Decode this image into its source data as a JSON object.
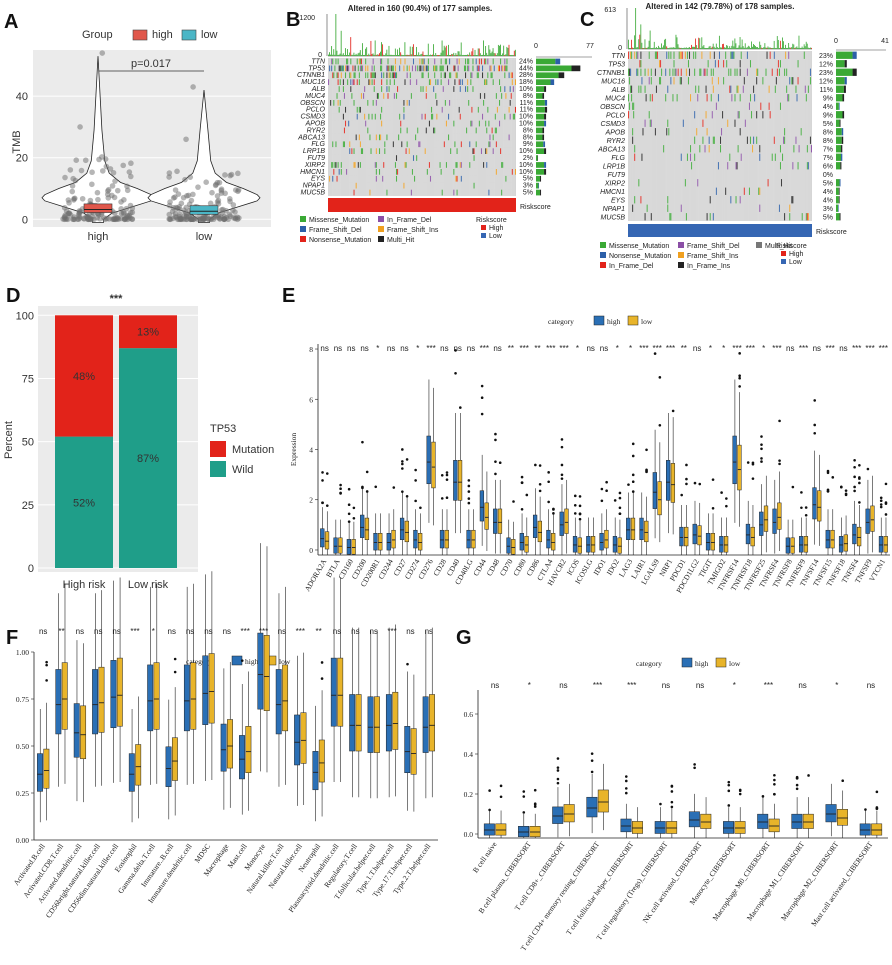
{
  "colors": {
    "high": "#e0574b",
    "low": "#4bb6c6",
    "box_high": "#2a6fb5",
    "box_low": "#e8b42a",
    "mut": "#e2231a",
    "wild": "#1f9e89",
    "green": "#3aa935"
  },
  "panels": {
    "A": "A",
    "B": "B",
    "C": "C",
    "D": "D",
    "E": "E",
    "F": "F",
    "G": "G"
  },
  "chart_data": [
    {
      "id": "A",
      "type": "violin",
      "legend_title": "Group",
      "legend": [
        "high",
        "low"
      ],
      "categories": [
        "high",
        "low"
      ],
      "ylabel": "TMB",
      "yticks": [
        0,
        20,
        40
      ],
      "ylim": [
        0,
        55
      ],
      "annotation": "p=0.017",
      "median": [
        3.2,
        2.6
      ]
    },
    {
      "id": "B",
      "type": "heatmap",
      "title": "Altered in 160 (90.4%) of 177 samples.",
      "top_max": "1200",
      "top_zero": "0",
      "right_range": [
        "0",
        "77"
      ],
      "genes": [
        "TTN",
        "TP53",
        "CTNNB1",
        "MUC16",
        "ALB",
        "MUC4",
        "OBSCN",
        "PCLO",
        "CSMD3",
        "APOB",
        "RYR2",
        "ABCA13",
        "FLG",
        "LRP1B",
        "FUT9",
        "XIRP2",
        "HMCN1",
        "EYS",
        "NPAP1",
        "MUC5B"
      ],
      "pct": [
        "24%",
        "44%",
        "28%",
        "18%",
        "10%",
        "8%",
        "11%",
        "11%",
        "10%",
        "10%",
        "8%",
        "8%",
        "9%",
        "10%",
        "2%",
        "10%",
        "10%",
        "5%",
        "3%",
        "5%"
      ],
      "riskscore": "Riskscore",
      "legend": [
        "Missense_Mutation",
        "Frame_Shift_Del",
        "Nonsense_Mutation",
        "In_Frame_Del",
        "Frame_Shift_Ins",
        "Multi_Hit"
      ],
      "risk_legend": [
        "High",
        "Low"
      ]
    },
    {
      "id": "C",
      "type": "heatmap",
      "title": "Altered in 142 (79.78%) of 178 samples.",
      "top_max": "613",
      "top_zero": "0",
      "right_range": [
        "0",
        "41"
      ],
      "genes": [
        "TTN",
        "TP53",
        "CTNNB1",
        "MUC16",
        "ALB",
        "MUC4",
        "OBSCN",
        "PCLO",
        "CSMD3",
        "APOB",
        "RYR2",
        "ABCA13",
        "FLG",
        "LRP1B",
        "FUT9",
        "XIRP2",
        "HMCN1",
        "EYS",
        "NPAP1",
        "MUC5B"
      ],
      "pct": [
        "23%",
        "12%",
        "23%",
        "12%",
        "11%",
        "9%",
        "4%",
        "9%",
        "5%",
        "8%",
        "8%",
        "7%",
        "7%",
        "6%",
        "0%",
        "5%",
        "4%",
        "4%",
        "3%",
        "5%"
      ],
      "riskscore": "Riskscore",
      "legend": [
        "Missense_Mutation",
        "Nonsense_Mutation",
        "In_Frame_Del",
        "Frame_Shift_Del",
        "Frame_Shift_Ins",
        "In_Frame_Ins",
        "Multi_Hit"
      ],
      "risk_legend": [
        "High",
        "Low"
      ]
    },
    {
      "id": "D",
      "type": "bar",
      "stacked": true,
      "title": "***",
      "categories": [
        "High risk",
        "Low risk"
      ],
      "ylabel": "Percent",
      "yticks": [
        0,
        25,
        50,
        75,
        100
      ],
      "series": [
        {
          "name": "Wild",
          "values": [
            52,
            87
          ]
        },
        {
          "name": "Mutation",
          "values": [
            48,
            13
          ]
        }
      ],
      "labels": {
        "wild": [
          "52%",
          "87%"
        ],
        "mut": [
          "48%",
          "13%"
        ]
      },
      "legend_title": "TP53",
      "legend": [
        "Mutation",
        "Wild"
      ]
    },
    {
      "id": "E",
      "type": "boxplot",
      "legend_title": "category",
      "legend": [
        "high",
        "low"
      ],
      "ylabel": "Expression",
      "yticks": [
        0,
        2,
        4,
        6,
        8
      ],
      "ylim": [
        0,
        8.2
      ],
      "categories": [
        "ADORA2A",
        "BTLA",
        "CD160",
        "CD200",
        "CD200R1",
        "CD244",
        "CD27",
        "CD274",
        "CD276",
        "CD28",
        "CD40",
        "CD40LG",
        "CD44",
        "CD48",
        "CD70",
        "CD80",
        "CD86",
        "CTLA4",
        "HAVCR2",
        "ICOS",
        "ICOSLG",
        "IDO1",
        "IDO2",
        "LAG3",
        "LAIR1",
        "LGALS9",
        "NRP1",
        "PDCD1",
        "PDCD1LG2",
        "TIGIT",
        "TMIGD2",
        "TNFRSF14",
        "TNFRSF18",
        "TNFRSF25",
        "TNFRSF4",
        "TNFRSF8",
        "TNFRSF9",
        "TNFSF14",
        "TNFSF15",
        "TNFSF18",
        "TNFSF4",
        "TNFSF9",
        "VTCN1"
      ],
      "sig": [
        "ns",
        "ns",
        "ns",
        "ns",
        "*",
        "ns",
        "ns",
        "*",
        "***",
        "ns",
        "ns",
        "ns",
        "***",
        "ns",
        "**",
        "***",
        "**",
        "***",
        "***",
        "*",
        "ns",
        "ns",
        "*",
        "*",
        "***",
        "***",
        "***",
        "**",
        "ns",
        "*",
        "*",
        "***",
        "***",
        "*",
        "***",
        "ns",
        "***",
        "ns",
        "***",
        "ns",
        "***",
        "***",
        "***"
      ],
      "median_high": [
        0.45,
        0.15,
        0.1,
        0.9,
        0.3,
        0.3,
        0.8,
        0.4,
        3.5,
        0.4,
        2.7,
        0.4,
        1.7,
        1.1,
        0.15,
        0.3,
        0.9,
        0.4,
        1.0,
        0.2,
        0.2,
        0.3,
        0.2,
        0.8,
        0.8,
        2.3,
        2.7,
        0.5,
        0.6,
        0.3,
        0.2,
        3.5,
        0.6,
        1.0,
        1.1,
        0.15,
        0.2,
        1.8,
        0.4,
        0.2,
        0.6,
        1.1,
        0.2
      ],
      "median_low": [
        0.35,
        0.15,
        0.1,
        0.8,
        0.3,
        0.4,
        0.7,
        0.3,
        3.3,
        0.4,
        2.7,
        0.4,
        1.3,
        1.1,
        0.1,
        0.2,
        0.7,
        0.3,
        1.1,
        0.15,
        0.2,
        0.4,
        0.15,
        0.8,
        0.7,
        2.0,
        2.6,
        0.5,
        0.55,
        0.3,
        0.2,
        3.2,
        0.5,
        1.2,
        1.3,
        0.15,
        0.2,
        1.7,
        0.4,
        0.25,
        0.5,
        1.2,
        0.2
      ]
    },
    {
      "id": "F",
      "type": "boxplot",
      "legend_title": "category",
      "legend": [
        "high",
        "low"
      ],
      "yticks": [
        "0.00",
        "0.25",
        "0.50",
        "0.75",
        "1.00"
      ],
      "ylim": [
        0,
        1
      ],
      "categories": [
        "Activated.B.cell",
        "Activated.CD8.T.cell",
        "Activated.dendritic.cell",
        "CD56bright.natural.killer.cell",
        "CD56dim.natural.killer.cell",
        "Eosinophil",
        "Gamma.delta.T.cell",
        "Immature..B.cell",
        "Immature.dendritic.cell",
        "MDSC",
        "Macrophage",
        "Mast.cell",
        "Monocyte",
        "Natural.killer.T.cell",
        "Natural.killer.cell",
        "Neutrophil",
        "Plasmacytoid.dendritic.cell",
        "Regulatory.T.cell",
        "T.follicular.helper.cell",
        "Type.1.T.helper.cell",
        "Type.17.T.helper.cell",
        "Type.2.T.helper.cell"
      ],
      "sig": [
        "ns",
        "**",
        "ns",
        "ns",
        "ns",
        "***",
        "*",
        "ns",
        "ns",
        "ns",
        "ns",
        "***",
        "***",
        "ns",
        "***",
        "**",
        "ns",
        "ns",
        "ns",
        "***",
        "ns",
        "ns"
      ],
      "median_high": [
        0.35,
        0.72,
        0.57,
        0.72,
        0.76,
        0.35,
        0.74,
        0.38,
        0.74,
        0.78,
        0.48,
        0.43,
        0.88,
        0.72,
        0.52,
        0.36,
        0.77,
        0.61,
        0.6,
        0.61,
        0.47,
        0.6
      ],
      "median_low": [
        0.37,
        0.75,
        0.56,
        0.73,
        0.77,
        0.39,
        0.75,
        0.42,
        0.75,
        0.79,
        0.5,
        0.47,
        0.87,
        0.74,
        0.53,
        0.41,
        0.77,
        0.61,
        0.6,
        0.62,
        0.46,
        0.61
      ]
    },
    {
      "id": "G",
      "type": "boxplot",
      "legend_title": "category",
      "legend": [
        "high",
        "low"
      ],
      "yticks": [
        "0.0",
        "0.2",
        "0.4",
        "0.6"
      ],
      "ylim": [
        0,
        0.7
      ],
      "categories": [
        "B cell naive",
        "B cell plasma_CIBERSORT",
        "T cell CD8+_CIBERSORT",
        "T cell CD4+ memory resting_CIBERSORT",
        "T cell follicular helper_CIBERSORT",
        "T cell regulatory (Tregs)_CIBERSORT",
        "NK cell activated_CIBERSORT",
        "Monocyte_CIBERSORT",
        "Macrophage M0_CIBERSORT",
        "Macrophage M1_CIBERSORT",
        "Macrophage M2_CIBERSORT",
        "Mast cell activated_CIBERSORT"
      ],
      "sig": [
        "ns",
        "*",
        "ns",
        "***",
        "***",
        "ns",
        "ns",
        "*",
        "***",
        "ns",
        "*",
        "ns"
      ],
      "median_high": [
        0.02,
        0.01,
        0.09,
        0.13,
        0.04,
        0.03,
        0.07,
        0.03,
        0.06,
        0.06,
        0.1,
        0.02
      ],
      "median_low": [
        0.02,
        0.01,
        0.1,
        0.16,
        0.03,
        0.03,
        0.06,
        0.03,
        0.04,
        0.06,
        0.08,
        0.02
      ]
    }
  ]
}
